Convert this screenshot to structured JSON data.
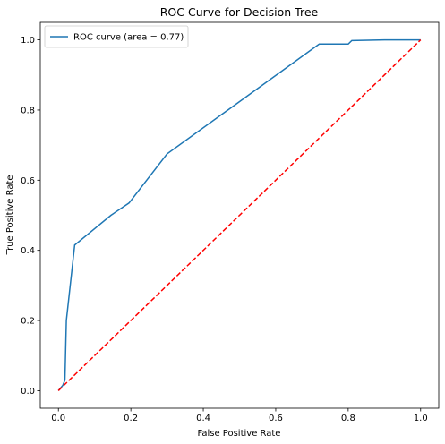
{
  "chart_data": {
    "type": "line",
    "title": "ROC Curve for Decision Tree",
    "xlabel": "False Positive Rate",
    "ylabel": "True Positive Rate",
    "xlim": [
      -0.05,
      1.05
    ],
    "ylim": [
      -0.05,
      1.05
    ],
    "xticks": [
      0.0,
      0.2,
      0.4,
      0.6,
      0.8,
      1.0
    ],
    "yticks": [
      0.0,
      0.2,
      0.4,
      0.6,
      0.8,
      1.0
    ],
    "xtick_labels": [
      "0.0",
      "0.2",
      "0.4",
      "0.6",
      "0.8",
      "1.0"
    ],
    "ytick_labels": [
      "0.0",
      "0.2",
      "0.4",
      "0.6",
      "0.8",
      "1.0"
    ],
    "grid": false,
    "legend_position": "top-left",
    "series": [
      {
        "name": "ROC curve (area = 0.77)",
        "color": "#1f77b4",
        "style": "solid",
        "x": [
          0.0,
          0.012,
          0.018,
          0.022,
          0.045,
          0.145,
          0.195,
          0.3,
          0.72,
          0.8,
          0.81,
          0.9,
          1.0
        ],
        "y": [
          0.0,
          0.015,
          0.03,
          0.2,
          0.415,
          0.5,
          0.535,
          0.675,
          0.988,
          0.988,
          0.998,
          1.0,
          1.0
        ]
      },
      {
        "color": "#ff0000",
        "style": "dashed",
        "x": [
          0.0,
          1.0
        ],
        "y": [
          0.0,
          1.0
        ]
      }
    ]
  }
}
